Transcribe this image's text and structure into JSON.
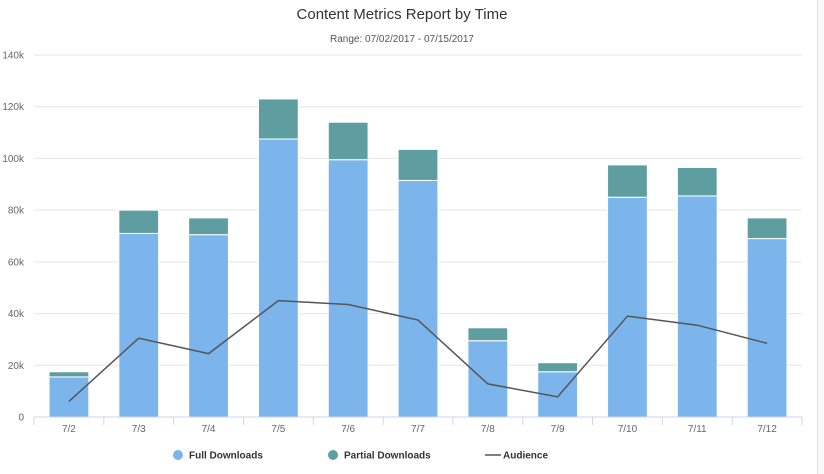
{
  "chart_data": {
    "type": "bar",
    "stacked": true,
    "title": "Content Metrics Report by Time",
    "subtitle": "Range: 07/02/2017 - 07/15/2017",
    "categories": [
      "7/2",
      "7/3",
      "7/4",
      "7/5",
      "7/6",
      "7/7",
      "7/8",
      "7/9",
      "7/10",
      "7/11",
      "7/12"
    ],
    "y_ticks": [
      "0",
      "20k",
      "40k",
      "60k",
      "80k",
      "100k",
      "120k",
      "140k"
    ],
    "ylim": [
      0,
      140000
    ],
    "grid": true,
    "legend_position": "bottom-center",
    "series": [
      {
        "name": "Full Downloads",
        "kind": "bar",
        "color": "#7cb5ec",
        "values": [
          15500,
          71000,
          70500,
          107500,
          99500,
          91500,
          29500,
          17500,
          85000,
          85500,
          69000
        ]
      },
      {
        "name": "Partial Downloads",
        "kind": "bar",
        "color": "#5f9ea0",
        "values": [
          2000,
          9000,
          6500,
          15500,
          14500,
          12000,
          5000,
          3500,
          12500,
          11000,
          8000
        ]
      },
      {
        "name": "Audience",
        "kind": "line",
        "color": "#555555",
        "values": [
          6000,
          30500,
          24500,
          45000,
          43500,
          37500,
          12800,
          7800,
          39000,
          35500,
          28500
        ]
      }
    ]
  }
}
